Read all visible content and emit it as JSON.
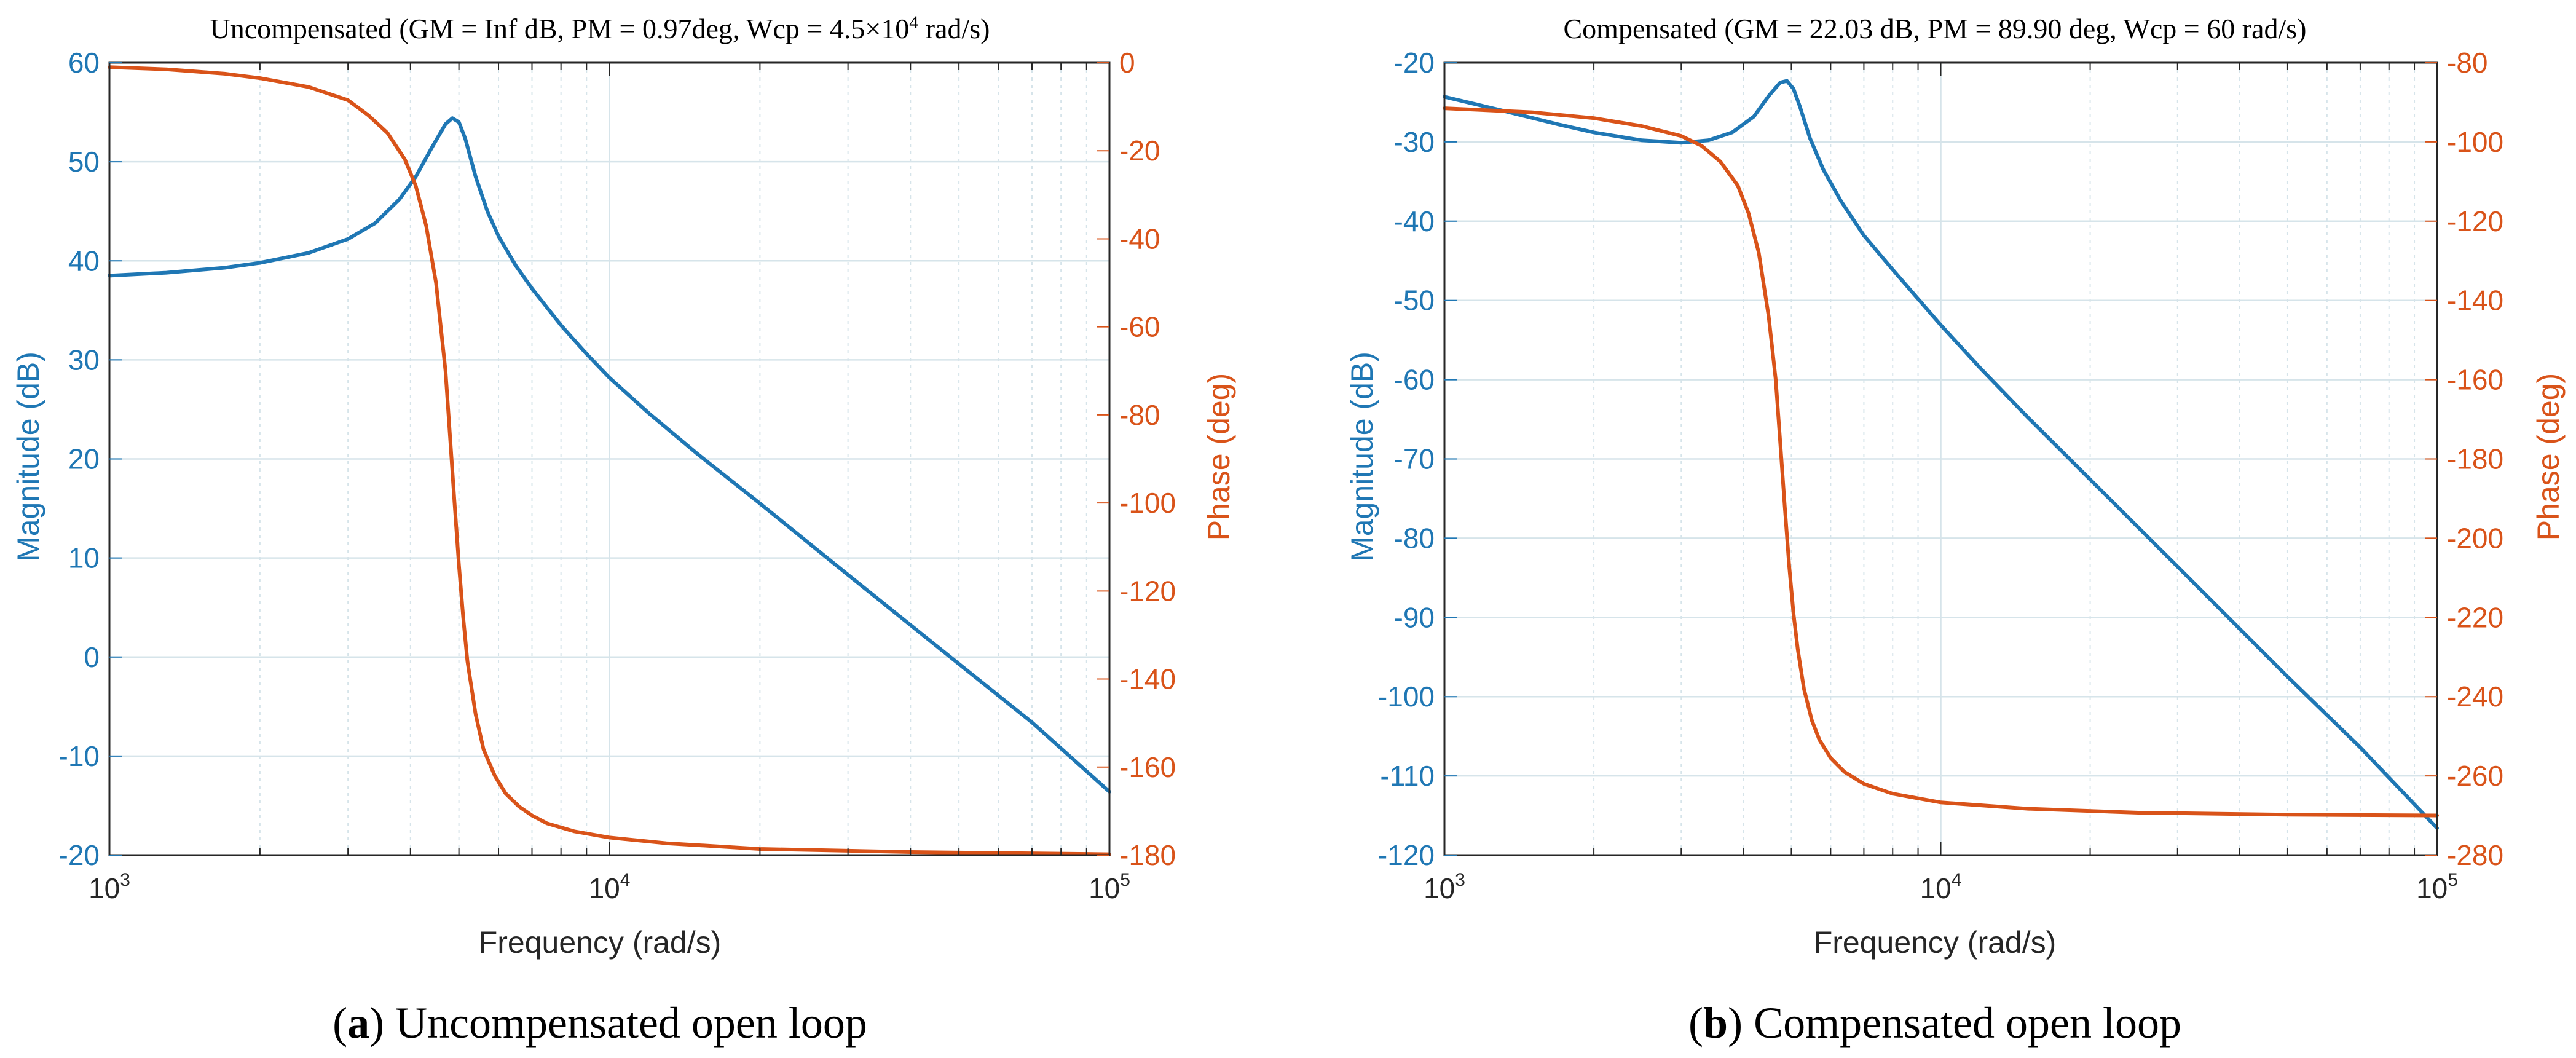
{
  "colors": {
    "magnitude": "#1f77b4",
    "phase": "#d95319",
    "grid": "#d6e4ea",
    "axis": "#262626"
  },
  "chart_data": [
    {
      "type": "line",
      "title": "Uncompensated (GM = Inf dB, PM = 0.97deg, Wcp = 4.5×10",
      "title_sup": "4",
      "title_tail": " rad/s)",
      "xlabel": "Frequency (rad/s)",
      "ylabel_left": "Magnitude (dB)",
      "ylabel_right": "Phase (deg)",
      "xscale": "log",
      "xlim": [
        1000,
        100000
      ],
      "xticks": [
        {
          "value": 1000,
          "base": "10",
          "exp": "3"
        },
        {
          "value": 10000,
          "base": "10",
          "exp": "4"
        },
        {
          "value": 100000,
          "base": "10",
          "exp": "5"
        }
      ],
      "ylim_left": [
        -20,
        60
      ],
      "yticks_left": [
        60,
        50,
        40,
        30,
        20,
        10,
        0,
        -10,
        -20
      ],
      "ylim_right": [
        -180,
        0
      ],
      "yticks_right": [
        0,
        -20,
        -40,
        -60,
        -80,
        -100,
        -120,
        -140,
        -160,
        -180
      ],
      "grid": true,
      "series": [
        {
          "name": "Magnitude (dB)",
          "axis": "left",
          "color": "#1f77b4",
          "x": [
            1000,
            1300,
            1700,
            2000,
            2500,
            3000,
            3400,
            3800,
            4100,
            4400,
            4700,
            4850,
            5000,
            5150,
            5400,
            5700,
            6000,
            6500,
            7000,
            8000,
            9000,
            10000,
            12000,
            15000,
            20000,
            30000,
            50000,
            70000,
            100000
          ],
          "values": [
            38.5,
            38.8,
            39.3,
            39.8,
            40.8,
            42.2,
            43.8,
            46.2,
            48.5,
            51.3,
            53.8,
            54.4,
            54.0,
            52.3,
            48.5,
            45.0,
            42.5,
            39.5,
            37.2,
            33.5,
            30.6,
            28.2,
            24.6,
            20.5,
            15.5,
            8.3,
            -0.7,
            -6.6,
            -13.6
          ]
        },
        {
          "name": "Phase (deg)",
          "axis": "right",
          "color": "#d95319",
          "x": [
            1000,
            1300,
            1700,
            2000,
            2500,
            3000,
            3300,
            3600,
            3900,
            4100,
            4300,
            4500,
            4700,
            4800,
            4900,
            5000,
            5100,
            5200,
            5400,
            5600,
            5900,
            6200,
            6600,
            7000,
            7500,
            8500,
            10000,
            13000,
            20000,
            40000,
            100000
          ],
          "values": [
            -1,
            -1.5,
            -2.5,
            -3.5,
            -5.5,
            -8.5,
            -12,
            -16,
            -22,
            -28,
            -37,
            -50,
            -70,
            -85,
            -100,
            -114,
            -126,
            -136,
            -148,
            -156,
            -162,
            -166,
            -169,
            -171,
            -172.8,
            -174.6,
            -176,
            -177.3,
            -178.6,
            -179.3,
            -179.8
          ]
        }
      ],
      "caption_label": "a",
      "caption_text": " Uncompensated open loop"
    },
    {
      "type": "line",
      "title": "Compensated (GM = 22.03 dB, PM = 89.90 deg, Wcp = 60 rad/s)",
      "title_sup": "",
      "title_tail": "",
      "xlabel": "Frequency (rad/s)",
      "ylabel_left": "Magnitude (dB)",
      "ylabel_right": "Phase (deg)",
      "xscale": "log",
      "xlim": [
        1000,
        100000
      ],
      "xticks": [
        {
          "value": 1000,
          "base": "10",
          "exp": "3"
        },
        {
          "value": 10000,
          "base": "10",
          "exp": "4"
        },
        {
          "value": 100000,
          "base": "10",
          "exp": "5"
        }
      ],
      "ylim_left": [
        -120,
        -20
      ],
      "yticks_left": [
        -20,
        -30,
        -40,
        -50,
        -60,
        -70,
        -80,
        -90,
        -100,
        -110,
        -120
      ],
      "ylim_right": [
        -280,
        -80
      ],
      "yticks_right": [
        -80,
        -100,
        -120,
        -140,
        -160,
        -180,
        -200,
        -220,
        -240,
        -260,
        -280
      ],
      "grid": true,
      "series": [
        {
          "name": "Magnitude (dB)",
          "axis": "left",
          "color": "#1f77b4",
          "x": [
            1000,
            1300,
            1700,
            2000,
            2500,
            3000,
            3400,
            3800,
            4200,
            4500,
            4750,
            4900,
            5050,
            5200,
            5450,
            5800,
            6300,
            7000,
            8000,
            10000,
            12000,
            15000,
            20000,
            30000,
            50000,
            70000,
            100000
          ],
          "values": [
            -24.3,
            -26.0,
            -27.8,
            -28.8,
            -29.8,
            -30.1,
            -29.8,
            -28.8,
            -26.8,
            -24.2,
            -22.5,
            -22.3,
            -23.3,
            -25.5,
            -29.5,
            -33.5,
            -37.5,
            -41.8,
            -46.1,
            -53.1,
            -58.5,
            -64.8,
            -72.6,
            -83.6,
            -97.5,
            -106.4,
            -116.6
          ]
        },
        {
          "name": "Phase (deg)",
          "axis": "right",
          "color": "#d95319",
          "x": [
            1000,
            1500,
            2000,
            2500,
            3000,
            3300,
            3600,
            3900,
            4100,
            4300,
            4500,
            4650,
            4750,
            4850,
            4950,
            5050,
            5150,
            5300,
            5500,
            5700,
            6000,
            6400,
            7000,
            8000,
            10000,
            15000,
            25000,
            50000,
            100000
          ],
          "values": [
            -91.5,
            -92.5,
            -94,
            -96,
            -98.5,
            -101,
            -105,
            -111,
            -118,
            -128,
            -144,
            -160,
            -176,
            -192,
            -207,
            -219,
            -228,
            -238,
            -246,
            -251,
            -255.5,
            -259,
            -262,
            -264.5,
            -266.7,
            -268.3,
            -269.3,
            -269.8,
            -270
          ]
        }
      ],
      "caption_label": "b",
      "caption_text": " Compensated open loop"
    }
  ]
}
